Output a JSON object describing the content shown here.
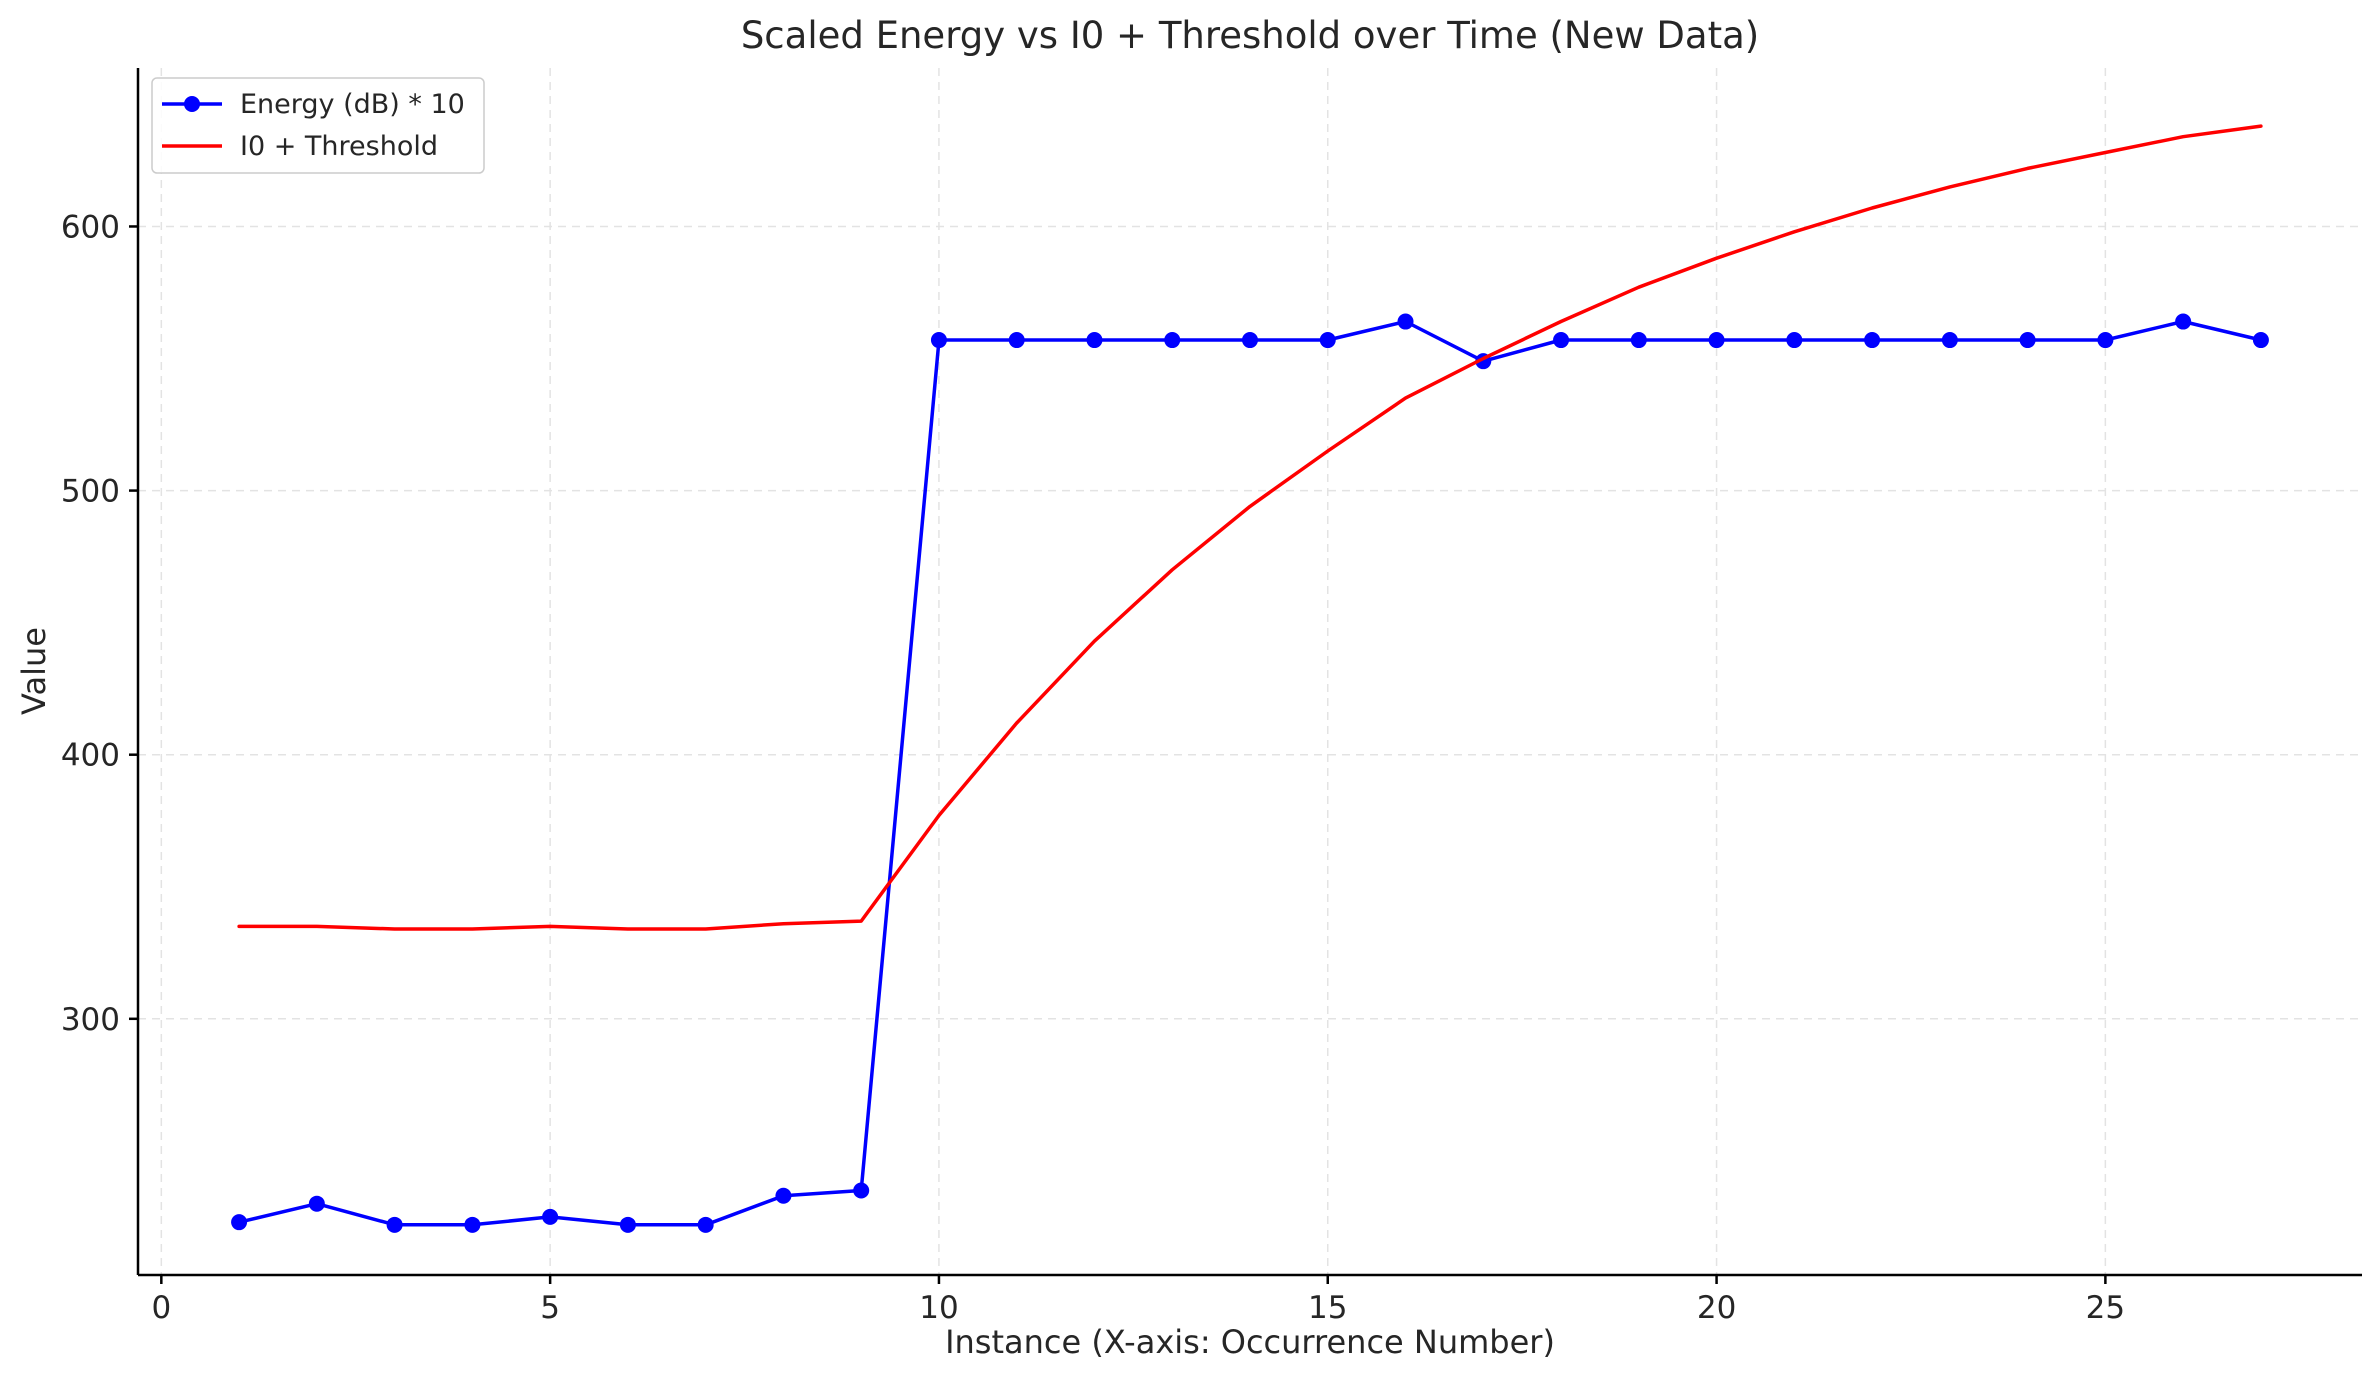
{
  "chart_data": {
    "type": "line",
    "title": "Scaled Energy vs I0 + Threshold over Time (New Data)",
    "xlabel": "Instance (X-axis: Occurrence Number)",
    "ylabel": "Value",
    "xlim": [
      -0.3,
      28.3
    ],
    "ylim": [
      203,
      660
    ],
    "xticks": [
      0,
      5,
      10,
      15,
      20,
      25
    ],
    "yticks": [
      300,
      400,
      500,
      600
    ],
    "grid": true,
    "legend_position": "top-left",
    "x": [
      1,
      2,
      3,
      4,
      5,
      6,
      7,
      8,
      9,
      10,
      11,
      12,
      13,
      14,
      15,
      16,
      17,
      18,
      19,
      20,
      21,
      22,
      23,
      24,
      25,
      26,
      27
    ],
    "series": [
      {
        "name": "Energy (dB) * 10",
        "color": "#0000ff",
        "marker": "circle",
        "values": [
          223,
          230,
          222,
          222,
          225,
          222,
          222,
          233,
          235,
          557,
          557,
          557,
          557,
          557,
          557,
          564,
          549,
          557,
          557,
          557,
          557,
          557,
          557,
          557,
          557,
          564,
          557
        ]
      },
      {
        "name": "I0 + Threshold",
        "color": "#ff0000",
        "marker": "none",
        "values": [
          335,
          335,
          334,
          334,
          335,
          334,
          334,
          336,
          337,
          377,
          412,
          443,
          470,
          494,
          515,
          535,
          550,
          564,
          577,
          588,
          598,
          607,
          615,
          622,
          628,
          634,
          638
        ]
      }
    ]
  }
}
